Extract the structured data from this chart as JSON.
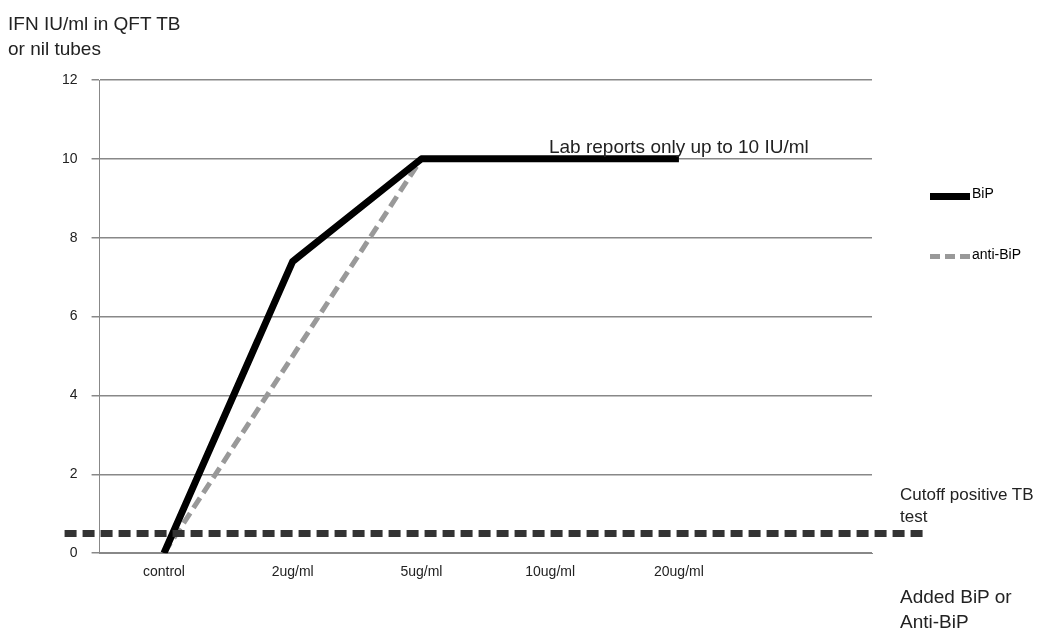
{
  "chart_data": {
    "type": "line",
    "ylabel": "IFN IU/ml in QFT TB or nil tubes",
    "xlabel": "Added BiP or Anti-BiP",
    "categories": [
      "control",
      "2ug/ml",
      "5ug/ml",
      "10ug/ml",
      "20ug/ml",
      null
    ],
    "series": [
      {
        "name": "BiP",
        "color": "#000000",
        "line_style": "solid",
        "values": [
          0,
          7.4,
          10,
          10,
          10,
          null
        ]
      },
      {
        "name": "anti-BiP",
        "color": "#999999",
        "line_style": "dashed",
        "values": [
          0,
          5,
          10,
          10,
          10,
          null
        ]
      }
    ],
    "ylim": [
      0,
      12
    ],
    "yticks": [
      0,
      2,
      4,
      6,
      8,
      10,
      12
    ],
    "grid": "y",
    "legend": "right",
    "marker": "none",
    "ref_lines": [
      {
        "axis": "y",
        "value": 0.5,
        "label": "Cutoff positive TB test",
        "color": "#333333",
        "line_style": "dashed"
      }
    ],
    "annotations": [
      {
        "text": "Lab reports only up to 10 IU/ml",
        "x": "20ug/ml",
        "y": 10
      }
    ]
  }
}
